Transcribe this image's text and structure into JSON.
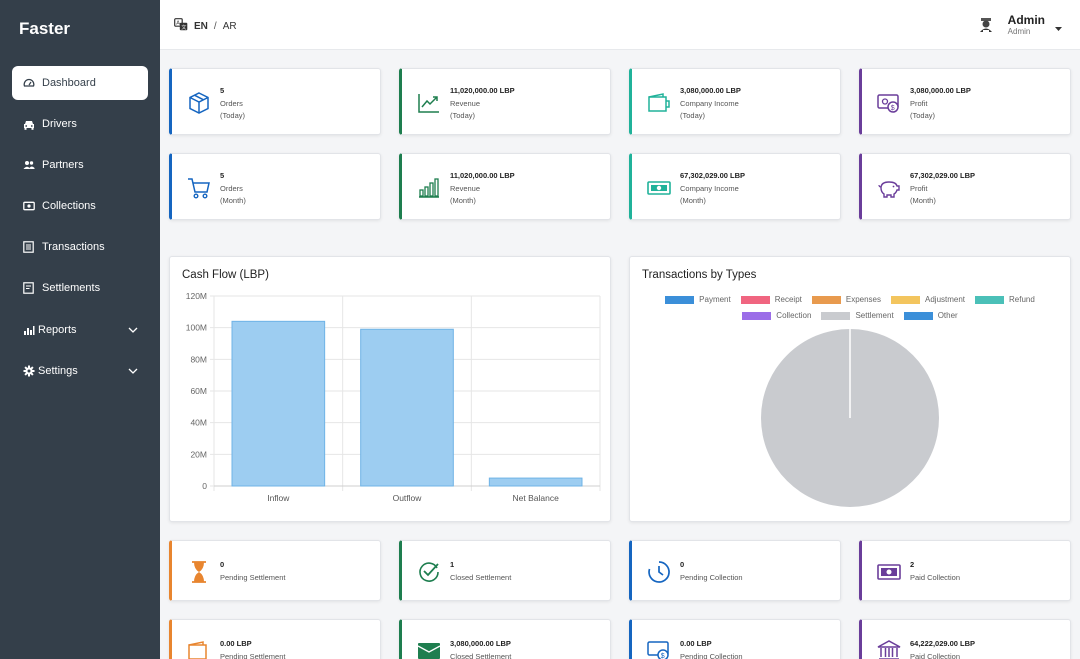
{
  "sidebar": {
    "brand": "Faster",
    "items": [
      {
        "label": "Dashboard",
        "icon": "gauge-icon"
      },
      {
        "label": "Drivers",
        "icon": "car-icon"
      },
      {
        "label": "Partners",
        "icon": "users-icon"
      },
      {
        "label": "Collections",
        "icon": "money-icon"
      },
      {
        "label": "Transactions",
        "icon": "list-icon"
      },
      {
        "label": "Settlements",
        "icon": "document-icon"
      },
      {
        "label": "Reports",
        "icon": "bar-chart-icon"
      },
      {
        "label": "Settings",
        "icon": "gear-icon"
      }
    ]
  },
  "header": {
    "lang_primary": "EN",
    "lang_separator": "/",
    "lang_secondary": "AR",
    "user_name": "Admin",
    "user_role": "Admin"
  },
  "stats_today": [
    {
      "value": "5",
      "label": "Orders",
      "period": "(Today)",
      "icon": "box-icon",
      "color": "#1565c0"
    },
    {
      "value": "11,020,000.00 LBP",
      "label": "Revenue",
      "period": "(Today)",
      "icon": "trend-up-icon",
      "color": "#1e7e4f"
    },
    {
      "value": "3,080,000.00 LBP",
      "label": "Company Income",
      "period": "(Today)",
      "icon": "wallet-icon",
      "color": "#20b29a"
    },
    {
      "value": "3,080,000.00 LBP",
      "label": "Profit",
      "period": "(Today)",
      "icon": "money-bill-icon",
      "color": "#6a3d9a"
    }
  ],
  "stats_month": [
    {
      "value": "5",
      "label": "Orders",
      "period": "(Month)",
      "icon": "cart-icon",
      "color": "#1565c0"
    },
    {
      "value": "11,020,000.00 LBP",
      "label": "Revenue",
      "period": "(Month)",
      "icon": "bar-chart-icon",
      "color": "#1e7e4f"
    },
    {
      "value": "67,302,029.00 LBP",
      "label": "Company Income",
      "period": "(Month)",
      "icon": "cash-icon",
      "color": "#20b29a"
    },
    {
      "value": "67,302,029.00 LBP",
      "label": "Profit",
      "period": "(Month)",
      "icon": "piggy-bank-icon",
      "color": "#6a3d9a"
    }
  ],
  "cashflow": {
    "title": "Cash Flow (LBP)"
  },
  "chart_data": [
    {
      "type": "bar",
      "title": "Cash Flow (LBP)",
      "categories": [
        "Inflow",
        "Outflow",
        "Net Balance"
      ],
      "values": [
        104000000,
        99000000,
        5000000
      ],
      "ylim": [
        0,
        120000000
      ],
      "yticks": [
        "0",
        "20M",
        "40M",
        "60M",
        "80M",
        "100M",
        "120M"
      ],
      "grid": true,
      "color": "#9dcdf1"
    },
    {
      "type": "pie",
      "title": "Transactions by Types",
      "legend": [
        {
          "label": "Payment",
          "color": "#3b8fd9"
        },
        {
          "label": "Receipt",
          "color": "#f06580"
        },
        {
          "label": "Expenses",
          "color": "#e89a4e"
        },
        {
          "label": "Adjustment",
          "color": "#f3c55e"
        },
        {
          "label": "Refund",
          "color": "#4bc0b8"
        },
        {
          "label": "Collection",
          "color": "#9b6de8"
        },
        {
          "label": "Settlement",
          "color": "#c9cbcf"
        },
        {
          "label": "Other",
          "color": "#3b8fd9"
        }
      ],
      "values": [
        0,
        0,
        0,
        0,
        0,
        0,
        1,
        0
      ],
      "legend_position": "top"
    }
  ],
  "transactions_panel": {
    "title": "Transactions by Types"
  },
  "settlement_counts": [
    {
      "value": "0",
      "label": "Pending Settlement",
      "icon": "hourglass-icon",
      "color": "#e8852f"
    },
    {
      "value": "1",
      "label": "Closed Settlement",
      "icon": "check-circle-icon",
      "color": "#1e7e4f"
    },
    {
      "value": "0",
      "label": "Pending Collection",
      "icon": "clock-icon",
      "color": "#1565c0"
    },
    {
      "value": "2",
      "label": "Paid Collection",
      "icon": "money-bill-icon",
      "color": "#6a3d9a"
    }
  ],
  "settlement_amounts": [
    {
      "value": "0.00 LBP",
      "label": "Pending Settlement",
      "icon": "wallet-icon",
      "color": "#e8852f"
    },
    {
      "value": "3,080,000.00 LBP",
      "label": "Closed Settlement",
      "icon": "cash-icon",
      "color": "#1e7e4f"
    },
    {
      "value": "0.00 LBP",
      "label": "Pending Collection",
      "icon": "dollar-money-icon",
      "color": "#1565c0"
    },
    {
      "value": "64,222,029.00 LBP",
      "label": "Paid Collection",
      "icon": "bank-icon",
      "color": "#6a3d9a"
    }
  ]
}
